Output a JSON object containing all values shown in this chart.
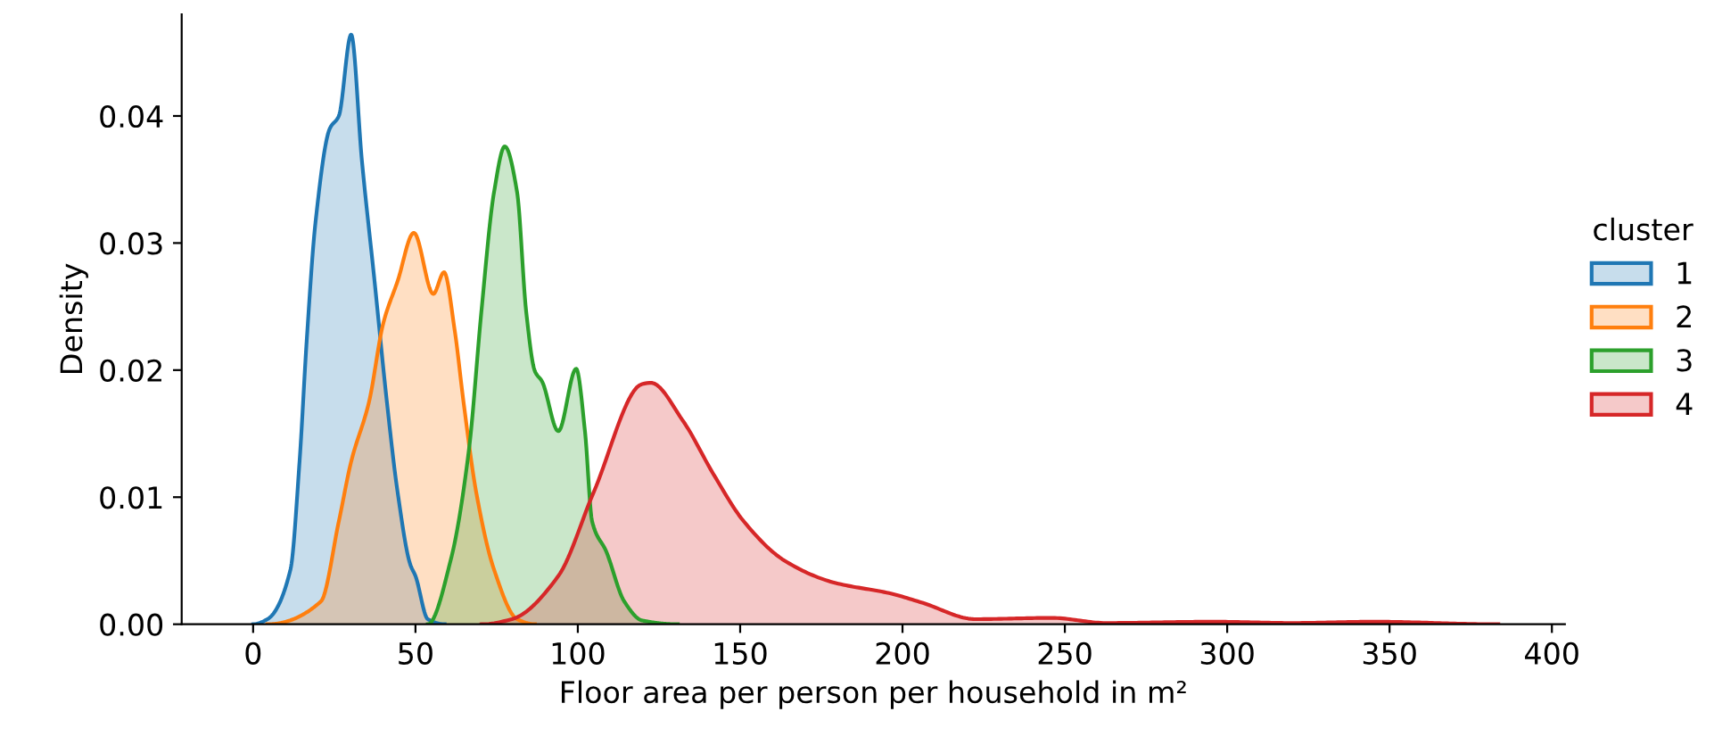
{
  "chart_data": {
    "type": "area",
    "xlabel": "Floor area per person per household in m²",
    "ylabel": "Density",
    "legend_title": "cluster",
    "legend": "right",
    "grid": false,
    "xlim": [
      -22,
      404
    ],
    "xticks": [
      0,
      50,
      100,
      150,
      200,
      250,
      300,
      350,
      400
    ],
    "ylim": [
      0,
      0.048
    ],
    "yticks": [
      {
        "value": 0,
        "label": "0.00"
      },
      {
        "value": 0.01,
        "label": "0.01"
      },
      {
        "value": 0.02,
        "label": "0.02"
      },
      {
        "value": 0.03,
        "label": "0.03"
      },
      {
        "value": 0.04,
        "label": "0.04"
      }
    ],
    "series": [
      {
        "name": "1",
        "color": "#1f77b4",
        "x": [
          0,
          4.4,
          11.5,
          14.3,
          16.5,
          19.2,
          23.6,
          26.4,
          30.2,
          33.5,
          37.4,
          41.2,
          44.5,
          48.4,
          50,
          53.8,
          59
        ],
        "values": [
          0,
          0.0004,
          0.0043,
          0.0128,
          0.0223,
          0.0316,
          0.039,
          0.04,
          0.0464,
          0.0365,
          0.027,
          0.0175,
          0.0104,
          0.0047,
          0.0038,
          0.0004,
          0
        ]
      },
      {
        "name": "2",
        "color": "#ff7f0e",
        "x": [
          4.4,
          20.9,
          26.4,
          30.2,
          35.7,
          40.1,
          44.5,
          49.5,
          55.5,
          58.8,
          62.1,
          64.8,
          68.7,
          74.2,
          81.3,
          86.8
        ],
        "values": [
          0,
          0.0018,
          0.0081,
          0.0128,
          0.0175,
          0.0237,
          0.027,
          0.0308,
          0.026,
          0.0277,
          0.0231,
          0.0175,
          0.0104,
          0.0043,
          0.0004,
          0
        ]
      },
      {
        "name": "3",
        "color": "#2ca02c",
        "x": [
          53.8,
          61,
          66.5,
          70.3,
          74.2,
          77.5,
          81.3,
          84.1,
          86.8,
          89,
          94,
          99.5,
          102.2,
          104.4,
          108.8,
          114.3,
          119.8,
          130.8
        ],
        "values": [
          0,
          0.0052,
          0.0138,
          0.0246,
          0.034,
          0.0376,
          0.034,
          0.0246,
          0.0199,
          0.0191,
          0.0152,
          0.0201,
          0.0152,
          0.0081,
          0.0057,
          0.0018,
          0.0003,
          0
        ]
      },
      {
        "name": "4",
        "color": "#d62728",
        "x": [
          70.3,
          79.7,
          94,
          104.9,
          119.8,
          122.5,
          132.4,
          141.8,
          151.1,
          163.7,
          178.6,
          196.7,
          206,
          222.5,
          246,
          262.6,
          295.6,
          320,
          345,
          383.5
        ],
        "values": [
          0,
          0.0004,
          0.0038,
          0.0104,
          0.0189,
          0.019,
          0.016,
          0.0118,
          0.0081,
          0.005,
          0.0033,
          0.0024,
          0.0017,
          0.0004,
          0.0005,
          0.0001,
          0.0002,
          0.0001,
          0.0002,
          0
        ]
      }
    ]
  }
}
